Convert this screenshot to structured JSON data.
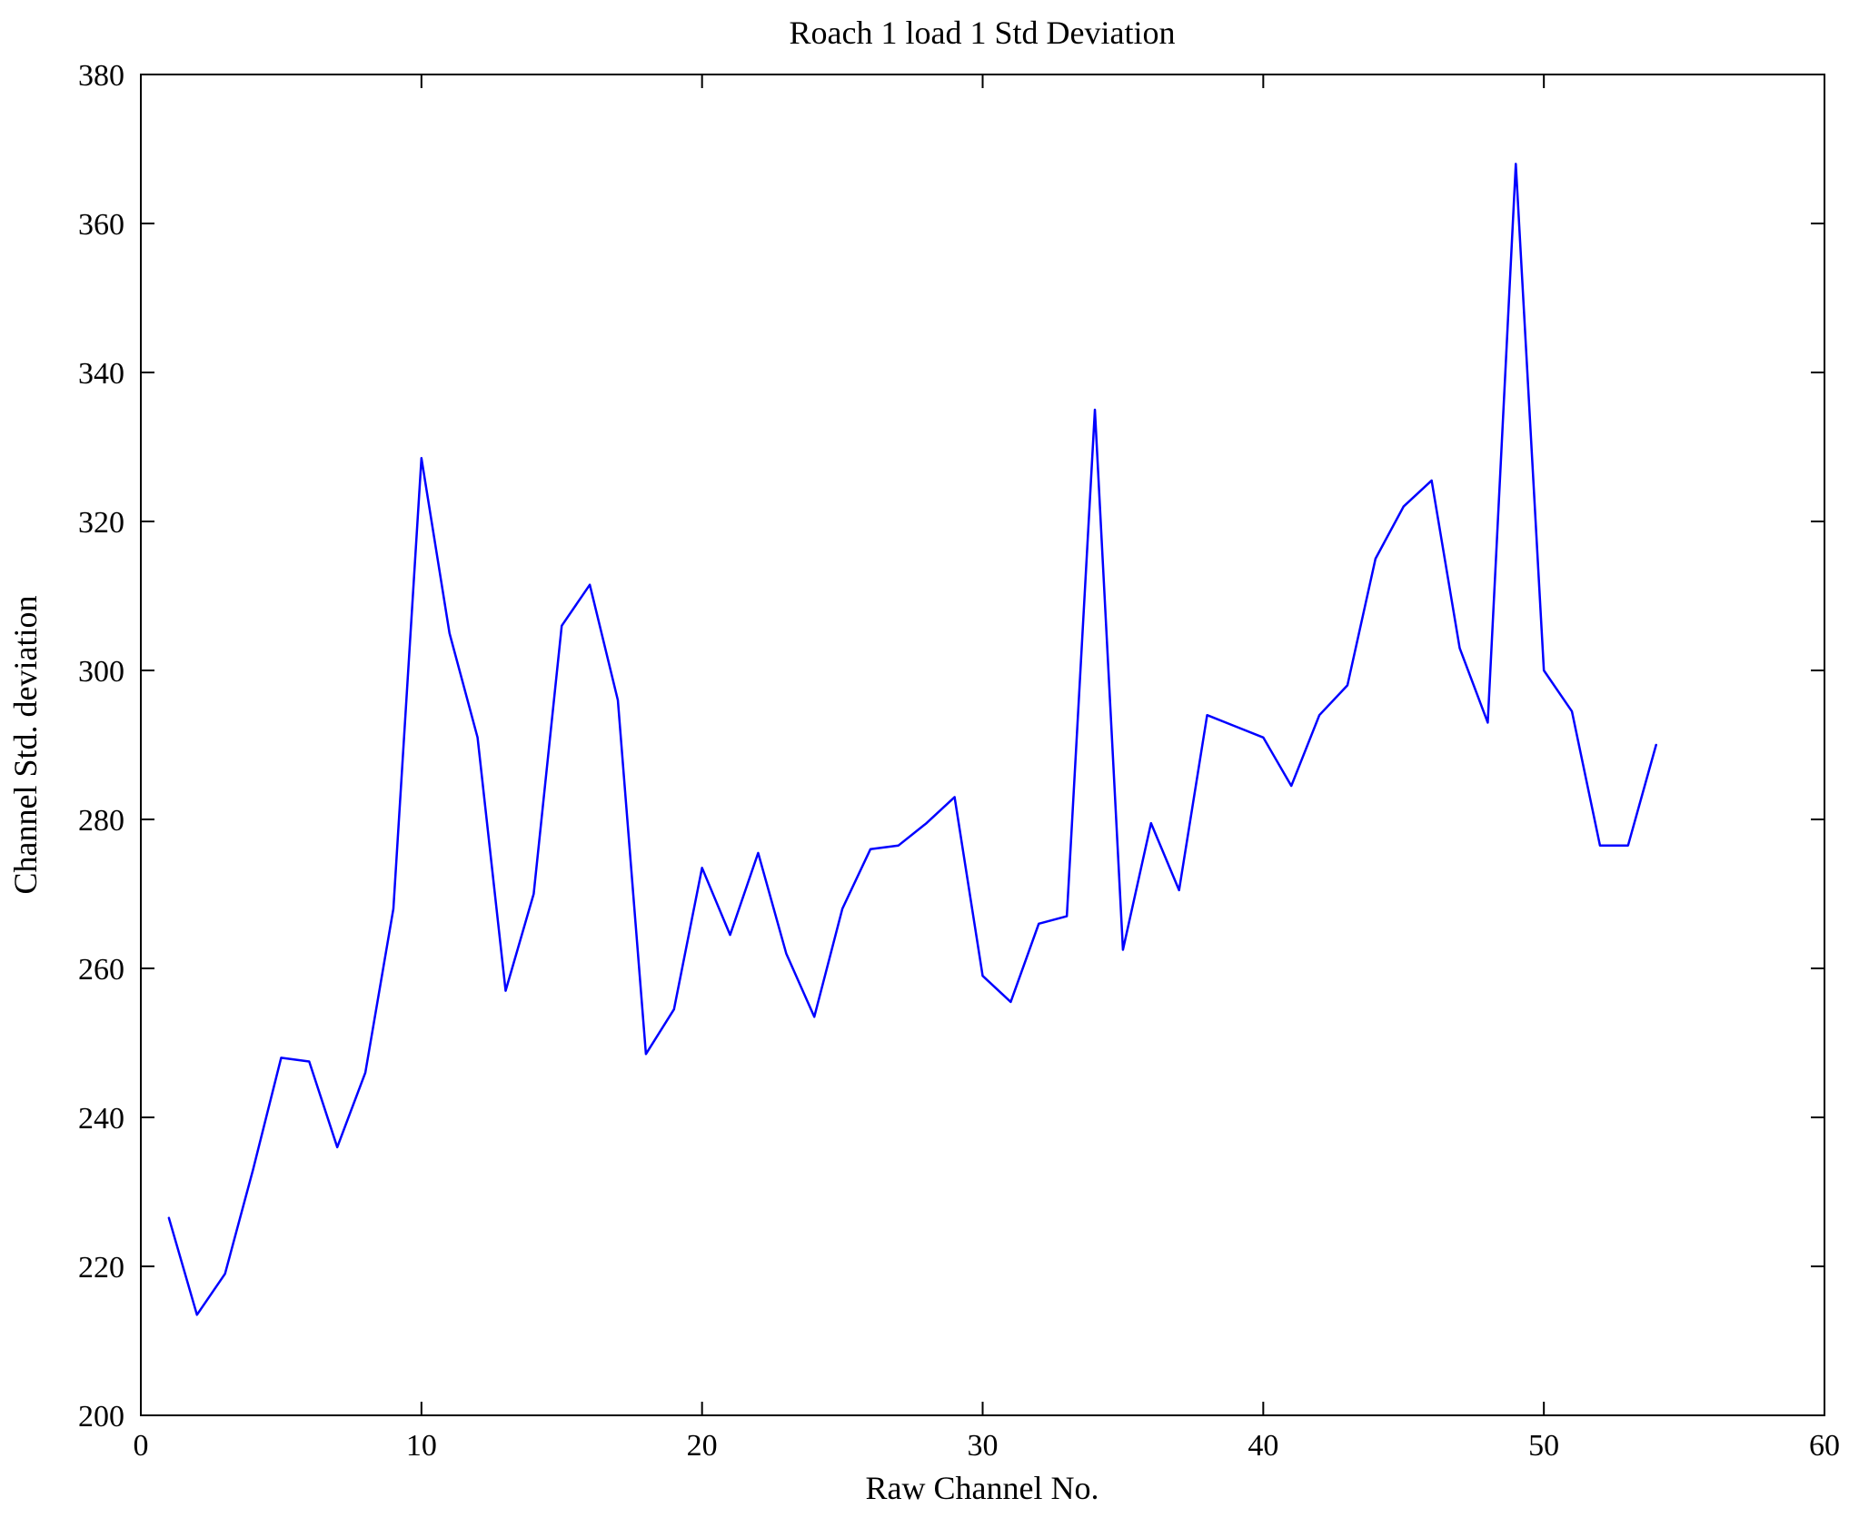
{
  "figure": {
    "background": "#ffffff",
    "frame_color": "#000000"
  },
  "chart_data": {
    "type": "line",
    "title": "Roach 1 load 1 Std Deviation",
    "xlabel": "Raw Channel No.",
    "ylabel": "Channel Std. deviation",
    "xlim": [
      0,
      60
    ],
    "ylim": [
      200,
      380
    ],
    "xticks": [
      0,
      10,
      20,
      30,
      40,
      50,
      60
    ],
    "yticks": [
      200,
      220,
      240,
      260,
      280,
      300,
      320,
      340,
      360,
      380
    ],
    "grid": false,
    "legend": null,
    "line_color": "#0000ff",
    "x": [
      1,
      2,
      3,
      4,
      5,
      6,
      7,
      8,
      9,
      10,
      11,
      12,
      13,
      14,
      15,
      16,
      17,
      18,
      19,
      20,
      21,
      22,
      23,
      24,
      25,
      26,
      27,
      28,
      29,
      30,
      31,
      32,
      33,
      34,
      35,
      36,
      37,
      38,
      39,
      40,
      41,
      42,
      43,
      44,
      45,
      46,
      47,
      48,
      49,
      50,
      51,
      52,
      53,
      54
    ],
    "y": [
      226.5,
      213.5,
      219,
      233,
      248,
      247.5,
      236,
      246,
      268,
      328.5,
      305,
      291,
      257,
      270,
      306,
      311.5,
      296,
      248.5,
      254.5,
      273.5,
      264.5,
      275.5,
      262,
      253.5,
      268,
      276,
      276.5,
      279.5,
      283,
      259,
      255.5,
      266,
      267,
      335,
      262.5,
      279.5,
      270.5,
      294,
      292.5,
      291,
      284.5,
      294,
      298,
      315,
      322,
      325.5,
      303,
      293,
      368,
      300,
      294.5,
      276.5,
      276.5,
      290
    ]
  }
}
